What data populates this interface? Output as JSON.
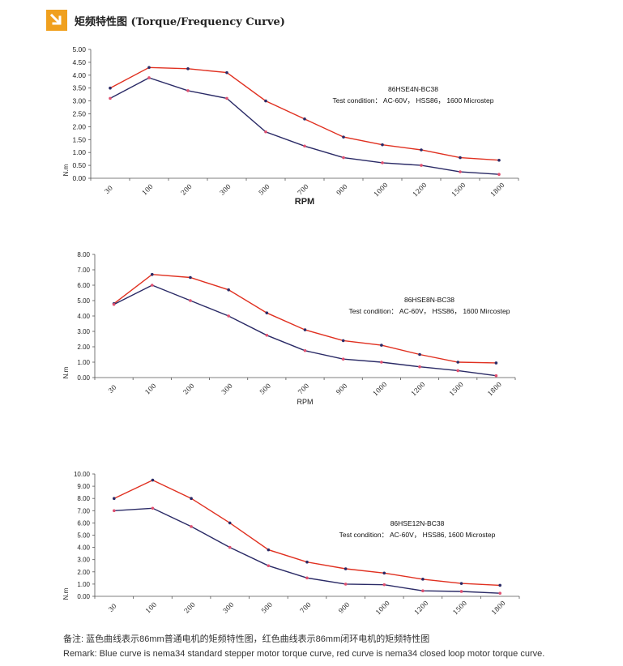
{
  "header": {
    "title": "矩频特性图 (Torque/Frequency Curve)",
    "logo_icon": "down-right-arrow-icon",
    "logo_color": "#f0a01e"
  },
  "colors": {
    "red": "#e03020",
    "blue": "#2a2a66",
    "marker": "#e05070"
  },
  "footer": {
    "line1": "备注:   蓝色曲线表示86mm普通电机的矩频特性图，红色曲线表示86mm闭环电机的矩频特性图",
    "line2": "Remark: Blue curve is nema34 standard stepper motor torque curve, red curve is nema34 closed loop motor torque curve."
  },
  "chart_data": [
    {
      "type": "line",
      "categories": [
        "30",
        "100",
        "200",
        "300",
        "500",
        "700",
        "900",
        "1000",
        "1200",
        "1500",
        "1800"
      ],
      "ylim": [
        0,
        5
      ],
      "yticks": [
        "0.00",
        "0.50",
        "1.00",
        "1.50",
        "2.00",
        "2.50",
        "3.00",
        "3.50",
        "4.00",
        "4.50",
        "5.00"
      ],
      "xlabel": "RPM",
      "ylabel": "N.m",
      "grid": false,
      "annotation": [
        "86HSE4N-BC38",
        "Test condition：    AC-60V，  HSS86，   1600 Microstep"
      ],
      "series": [
        {
          "color": "red",
          "values": [
            3.5,
            4.3,
            4.25,
            4.1,
            3.0,
            2.3,
            1.6,
            1.3,
            1.1,
            0.8,
            0.7
          ]
        },
        {
          "color": "blue",
          "values": [
            3.1,
            3.9,
            3.4,
            3.1,
            1.8,
            1.25,
            0.8,
            0.6,
            0.5,
            0.25,
            0.15
          ]
        }
      ]
    },
    {
      "type": "line",
      "categories": [
        "30",
        "100",
        "200",
        "300",
        "500",
        "700",
        "900",
        "1000",
        "1200",
        "1500",
        "1800"
      ],
      "ylim": [
        0,
        8
      ],
      "yticks": [
        "0.00",
        "1.00",
        "2.00",
        "3.00",
        "4.00",
        "5.00",
        "6.00",
        "7.00",
        "8.00"
      ],
      "xlabel": "RPM",
      "ylabel": "N.m",
      "grid": false,
      "annotation": [
        "86HSE8N-BC38",
        "Test condition：   AC-60V，  HSS86，   1600 Mircostep"
      ],
      "series": [
        {
          "color": "red",
          "values": [
            4.8,
            6.7,
            6.5,
            5.7,
            4.2,
            3.1,
            2.4,
            2.1,
            1.5,
            1.0,
            0.95
          ]
        },
        {
          "color": "blue",
          "values": [
            4.75,
            6.0,
            5.0,
            4.0,
            2.75,
            1.75,
            1.2,
            1.0,
            0.7,
            0.45,
            0.12
          ]
        }
      ]
    },
    {
      "type": "line",
      "categories": [
        "30",
        "100",
        "200",
        "300",
        "500",
        "700",
        "900",
        "1000",
        "1200",
        "1500",
        "1800"
      ],
      "ylim": [
        0,
        10
      ],
      "yticks": [
        "0.00",
        "1.00",
        "2.00",
        "3.00",
        "4.00",
        "5.00",
        "6.00",
        "7.00",
        "8.00",
        "9.00",
        "10.00"
      ],
      "xlabel": "",
      "ylabel": "N.m",
      "grid": false,
      "annotation": [
        "86HSE12N-BC38",
        "Test condition：   AC-60V，   HSS86, 1600 Microstep"
      ],
      "series": [
        {
          "color": "red",
          "values": [
            8.0,
            9.5,
            8.0,
            6.0,
            3.8,
            2.8,
            2.25,
            1.9,
            1.4,
            1.05,
            0.9
          ]
        },
        {
          "color": "blue",
          "values": [
            7.0,
            7.2,
            5.7,
            4.0,
            2.5,
            1.5,
            1.0,
            0.95,
            0.45,
            0.4,
            0.25
          ]
        }
      ]
    }
  ]
}
